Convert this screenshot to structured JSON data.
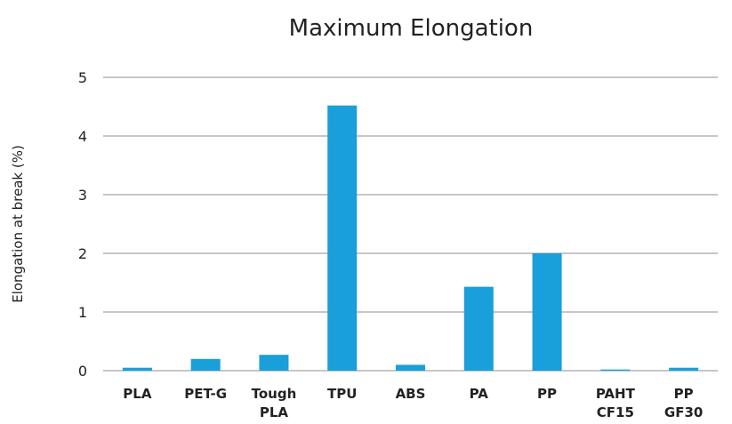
{
  "chart_data": {
    "type": "bar",
    "title": "Maximum Elongation",
    "xlabel": "",
    "ylabel": "Elongation at break (%)",
    "ylim": [
      0,
      5
    ],
    "yticks": [
      0,
      1,
      2,
      3,
      4,
      5
    ],
    "grid": true,
    "legend": "none",
    "bar_color": "#199fd9",
    "categories": [
      [
        "PLA"
      ],
      [
        "PET-G"
      ],
      [
        "Tough",
        "PLA"
      ],
      [
        "TPU"
      ],
      [
        "ABS"
      ],
      [
        "PA"
      ],
      [
        "PP"
      ],
      [
        "PAHT",
        "CF15"
      ],
      [
        "PP",
        "GF30"
      ]
    ],
    "values": [
      0.05,
      0.2,
      0.27,
      4.52,
      0.1,
      1.43,
      2.0,
      0.02,
      0.05
    ]
  }
}
